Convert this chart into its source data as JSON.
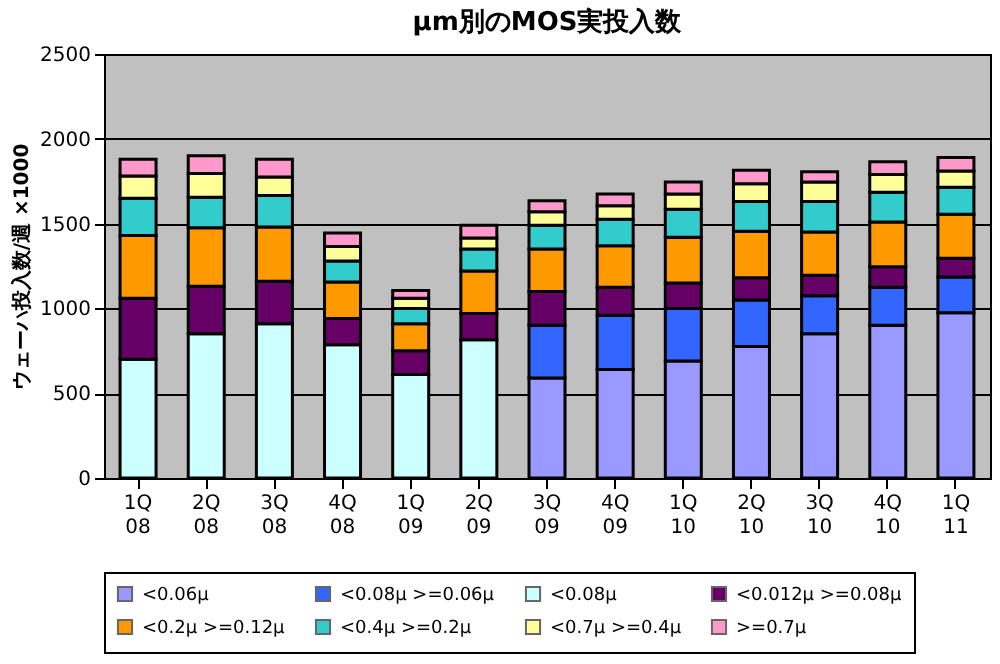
{
  "chart_data": {
    "type": "bar",
    "stacked": true,
    "title": "μm別のMOS実投入数",
    "ylabel": "ウェーハ投入数/週 ×1000",
    "categories": [
      "1Q\n08",
      "2Q\n08",
      "3Q\n08",
      "4Q\n08",
      "1Q\n09",
      "2Q\n09",
      "3Q\n09",
      "4Q\n09",
      "1Q\n10",
      "2Q\n10",
      "3Q\n10",
      "4Q\n10",
      "1Q\n11"
    ],
    "series": [
      {
        "name": "<0.06μ",
        "color": "#9999ff",
        "values": [
          null,
          null,
          null,
          null,
          null,
          null,
          590,
          640,
          690,
          775,
          850,
          900,
          975
        ]
      },
      {
        "name": "<0.08μ >=0.06μ",
        "color": "#3366ff",
        "values": [
          null,
          null,
          null,
          null,
          null,
          null,
          310,
          320,
          310,
          275,
          225,
          225,
          210
        ]
      },
      {
        "name": "<0.08μ",
        "color": "#ccffff",
        "values": [
          700,
          850,
          910,
          785,
          610,
          815,
          null,
          null,
          null,
          null,
          null,
          null,
          null
        ]
      },
      {
        "name": "<0.012μ >=0.08μ",
        "color": "#660066",
        "values": [
          360,
          280,
          250,
          155,
          140,
          155,
          200,
          165,
          150,
          130,
          120,
          120,
          110
        ]
      },
      {
        "name": "<0.2μ >=0.12μ",
        "color": "#ff9900",
        "values": [
          370,
          345,
          320,
          215,
          160,
          250,
          250,
          245,
          270,
          275,
          255,
          265,
          260
        ]
      },
      {
        "name": "<0.4μ >=0.2μ",
        "color": "#33cccc",
        "values": [
          220,
          180,
          185,
          125,
          90,
          130,
          140,
          155,
          165,
          175,
          180,
          175,
          160
        ]
      },
      {
        "name": "<0.7μ >=0.4μ",
        "color": "#ffff99",
        "values": [
          130,
          140,
          110,
          85,
          60,
          65,
          80,
          80,
          90,
          105,
          115,
          105,
          95
        ]
      },
      {
        "name": ">=0.7μ",
        "color": "#ff99cc",
        "values": [
          100,
          105,
          105,
          80,
          45,
          75,
          65,
          70,
          70,
          80,
          60,
          75,
          80
        ]
      }
    ],
    "ylim": [
      0,
      2500
    ],
    "yticks": [
      0,
      500,
      1000,
      1500,
      2000,
      2500
    ],
    "grid": "y",
    "legend": "bottom"
  }
}
